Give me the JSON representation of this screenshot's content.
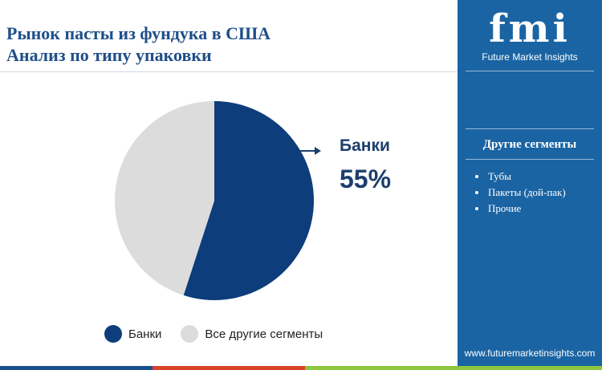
{
  "title_line1": "Рынок пасты из фундука в США",
  "title_line2": "Анализ по типу упаковки",
  "chart_data": {
    "type": "pie",
    "slices": [
      {
        "label": "Банки",
        "value": 55,
        "color": "#0d3d7a"
      },
      {
        "label": "Все другие сегменты",
        "value": 45,
        "color": "#dcdcdc"
      }
    ],
    "callout": {
      "label": "Банки",
      "value": "55%"
    },
    "legend_placement": "bottom"
  },
  "legend": [
    {
      "label": "Банки",
      "color": "#0d3d7a"
    },
    {
      "label": "Все другие сегменты",
      "color": "#dcdcdc"
    }
  ],
  "sidebar": {
    "logo_text": "fmi",
    "logo_subtitle": "Future Market Insights",
    "heading": "Другие сегменты",
    "items": [
      "Тубы",
      "Пакеты (дой-пак)",
      "Прочие"
    ],
    "website": "www.futuremarketinsights.com"
  },
  "colors": {
    "title": "#1f4f8a",
    "sidebar_bg": "#1a64a3",
    "accent_dark": "#0d3d7a",
    "bar_blue": "#1a4f8a",
    "bar_red": "#d9432b",
    "bar_green": "#8dc63f"
  }
}
